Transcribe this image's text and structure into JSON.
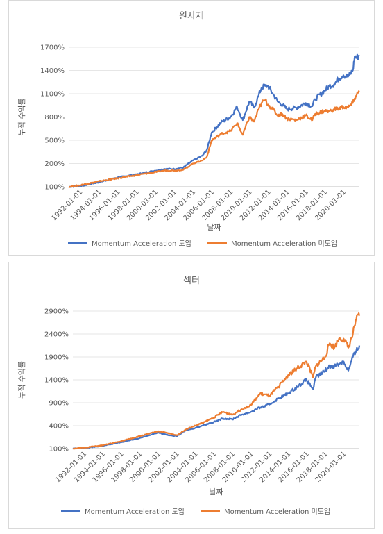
{
  "chart_data": [
    {
      "type": "line",
      "title": "원자재",
      "xlabel": "날짜",
      "ylabel": "누적 수익률",
      "ylim": [
        -100,
        1700
      ],
      "yticks": [
        "1700%",
        "1400%",
        "1100%",
        "800%",
        "500%",
        "200%",
        "-100%"
      ],
      "ytick_values": [
        1700,
        1400,
        1100,
        800,
        500,
        200,
        -100
      ],
      "xticks": [
        "1992-01-01",
        "1994-01-01",
        "1996-01-01",
        "1998-01-01",
        "2000-01-01",
        "2002-01-01",
        "2004-01-01",
        "2006-01-01",
        "2008-01-01",
        "2010-01-01",
        "2012-01-01",
        "2014-01-01",
        "2016-01-01",
        "2018-01-01",
        "2020-01-01"
      ],
      "xlim": [
        1990.8,
        2021.7
      ],
      "grid": true,
      "legend": "bottom",
      "series": [
        {
          "name": "Momentum Acceleration 도입",
          "color": "#4472C4",
          "x": [
            1990.8,
            1992,
            1994,
            1996,
            1998,
            2000,
            2001,
            2002,
            2003,
            2004,
            2004.5,
            2005,
            2005.5,
            2006,
            2007,
            2008,
            2008.7,
            2009.3,
            2010,
            2010.5,
            2011,
            2011.3,
            2011.7,
            2012,
            2012.5,
            2013,
            2013.5,
            2014,
            2015,
            2016,
            2016.7,
            2017,
            2018,
            2018.5,
            2019,
            2019.5,
            2020,
            2020.5,
            2021,
            2021.2,
            2021.4,
            2021.7
          ],
          "y": [
            -100,
            -90,
            -40,
            20,
            60,
            110,
            130,
            130,
            150,
            240,
            270,
            300,
            380,
            600,
            730,
            800,
            930,
            760,
            1000,
            920,
            1080,
            1180,
            1200,
            1200,
            1100,
            1000,
            960,
            900,
            920,
            980,
            940,
            1030,
            1140,
            1200,
            1220,
            1300,
            1340,
            1320,
            1400,
            1580,
            1560,
            1600
          ]
        },
        {
          "name": "Momentum Acceleration 미도입",
          "color": "#ED7D31",
          "x": [
            1990.8,
            1992,
            1994,
            1996,
            1998,
            2000,
            2001,
            2002,
            2003,
            2004,
            2004.5,
            2005,
            2005.5,
            2006,
            2007,
            2008,
            2008.7,
            2009.3,
            2010,
            2010.5,
            2011,
            2011.3,
            2011.7,
            2012,
            2012.5,
            2013,
            2013.5,
            2014,
            2015,
            2016,
            2016.7,
            2017,
            2018,
            2018.5,
            2019,
            2019.5,
            2020,
            2020.5,
            2021,
            2021.2,
            2021.4,
            2021.7
          ],
          "y": [
            -100,
            -80,
            -30,
            10,
            50,
            90,
            110,
            110,
            120,
            200,
            220,
            240,
            290,
            500,
            580,
            620,
            720,
            570,
            800,
            740,
            900,
            980,
            1020,
            960,
            900,
            820,
            840,
            780,
            760,
            820,
            760,
            840,
            880,
            870,
            900,
            910,
            930,
            920,
            980,
            1040,
            1080,
            1140
          ]
        }
      ]
    },
    {
      "type": "line",
      "title": "섹터",
      "xlabel": "날짜",
      "ylabel": "누적 수익률",
      "ylim": [
        -100,
        2900
      ],
      "yticks": [
        "2900%",
        "2400%",
        "1900%",
        "1400%",
        "900%",
        "400%",
        "-100%"
      ],
      "ytick_values": [
        2900,
        2400,
        1900,
        1400,
        900,
        400,
        -100
      ],
      "xticks": [
        "1992-01-01",
        "1994-01-01",
        "1996-01-01",
        "1998-01-01",
        "2000-01-01",
        "2002-01-01",
        "2004-01-01",
        "2006-01-01",
        "2008-01-01",
        "2010-01-01",
        "2012-01-01",
        "2014-01-01",
        "2016-01-01",
        "2018-01-01",
        "2020-01-01"
      ],
      "xlim": [
        1990.8,
        2021.7
      ],
      "grid": true,
      "legend": "bottom",
      "series": [
        {
          "name": "Momentum Acceleration 도입",
          "color": "#4472C4",
          "x": [
            1990.8,
            1992,
            1994,
            1996,
            1998,
            2000,
            2001,
            2002,
            2003,
            2004,
            2005,
            2006,
            2007,
            2008,
            2009,
            2010,
            2011,
            2012,
            2013,
            2014,
            2015,
            2016,
            2016.7,
            2017,
            2018,
            2018.5,
            2019,
            2019.5,
            2020,
            2020.5,
            2021,
            2021.3,
            2021.7
          ],
          "y": [
            -100,
            -90,
            -40,
            40,
            130,
            250,
            200,
            170,
            300,
            350,
            420,
            480,
            560,
            540,
            640,
            700,
            800,
            860,
            1000,
            1100,
            1250,
            1400,
            1200,
            1450,
            1600,
            1700,
            1700,
            1750,
            1800,
            1600,
            1900,
            2000,
            2150
          ]
        },
        {
          "name": "Momentum Acceleration 미도입",
          "color": "#ED7D31",
          "x": [
            1990.8,
            1992,
            1994,
            1996,
            1998,
            2000,
            2001,
            2002,
            2003,
            2004,
            2005,
            2006,
            2007,
            2008,
            2009,
            2010,
            2011,
            2012,
            2013,
            2014,
            2015,
            2016,
            2016.7,
            2017,
            2018,
            2018.5,
            2019,
            2019.5,
            2020,
            2020.5,
            2021,
            2021.3,
            2021.7
          ],
          "y": [
            -100,
            -80,
            -30,
            60,
            170,
            280,
            240,
            190,
            320,
            400,
            480,
            580,
            700,
            640,
            760,
            850,
            1100,
            1050,
            1250,
            1500,
            1650,
            1800,
            1450,
            1700,
            1900,
            2200,
            2100,
            2300,
            2300,
            2100,
            2400,
            2700,
            2800
          ]
        }
      ]
    }
  ]
}
